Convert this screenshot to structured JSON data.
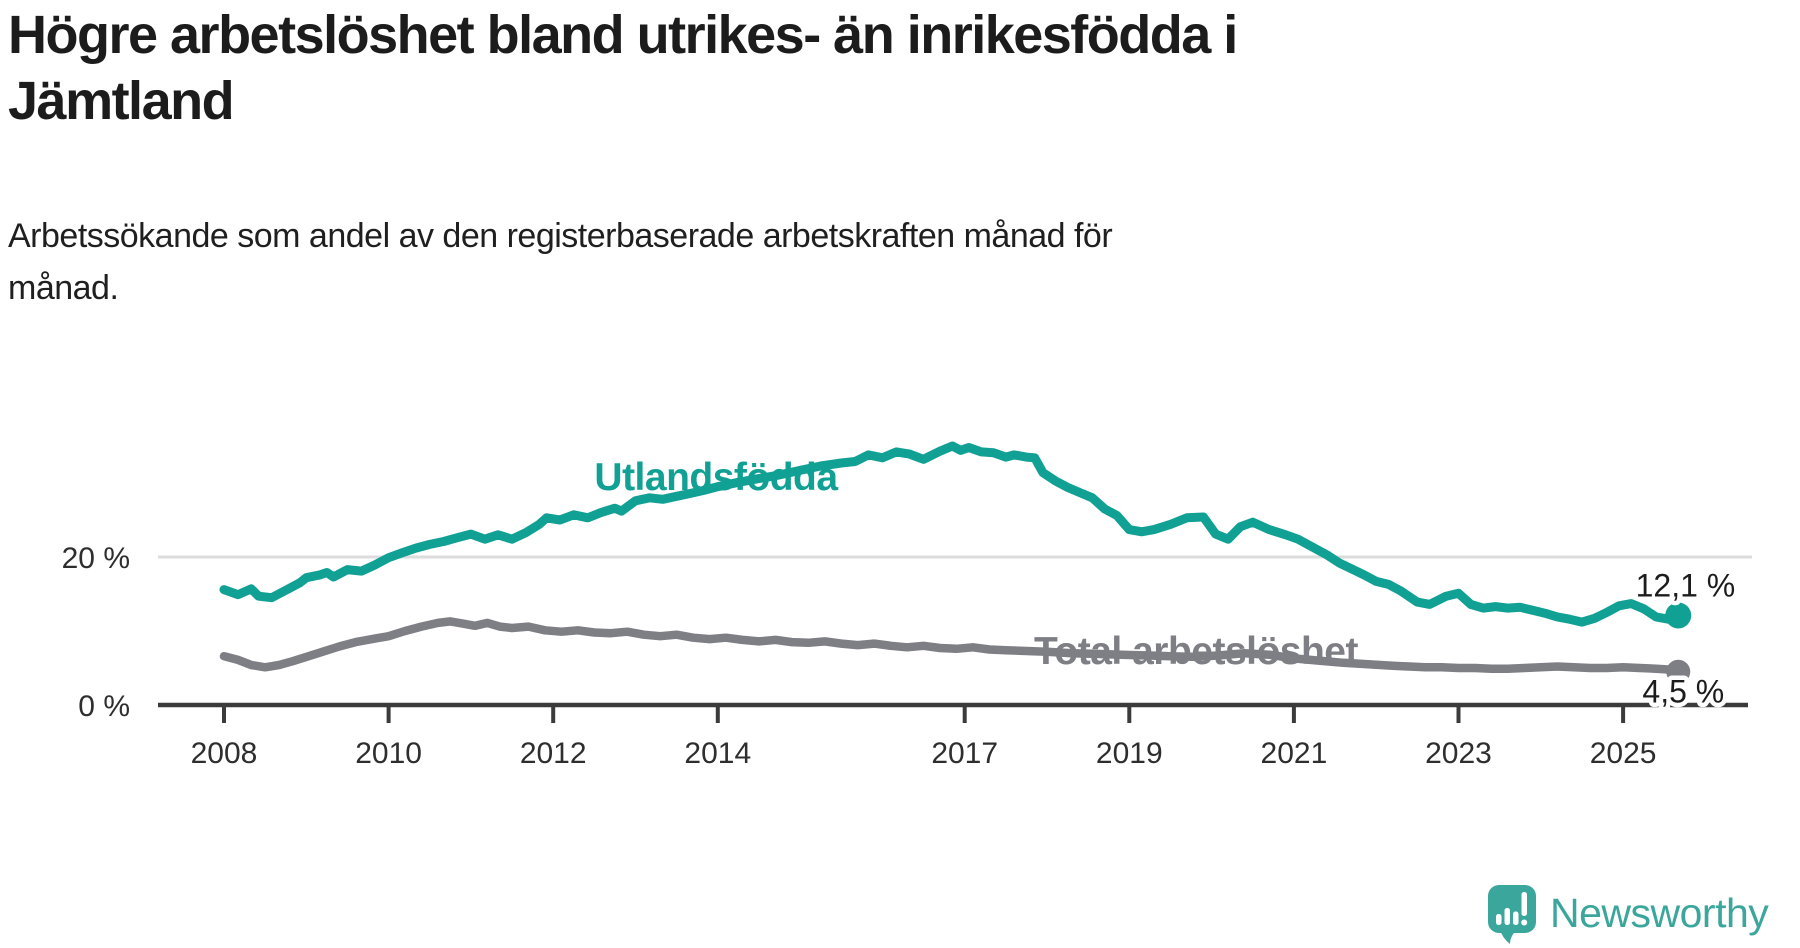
{
  "header": {
    "title_lines": [
      "Högre arbetslöshet bland utrikes- än inrikesfödda i",
      "Jämtland"
    ],
    "subtitle_lines": [
      "Arbetssökande som andel av den registerbaserade arbetskraften månad för",
      "månad."
    ]
  },
  "footer": {
    "brand_name": "Newsworthy"
  },
  "colors": {
    "teal": "#11a094",
    "gray": "#7e7e85",
    "axis": "#3b3b3b",
    "grid": "#dcdcdc",
    "tick_text": "#2e2e2e",
    "value_text": "#1c1c1c",
    "logo": "#3ba69c"
  },
  "chart_data": {
    "type": "line",
    "title": "Högre arbetslöshet bland utrikes- än inrikesfödda i Jämtland",
    "xlabel": "",
    "ylabel": "",
    "xlim": [
      2008,
      2025.67
    ],
    "ylim": [
      0,
      40
    ],
    "grid": "single horizontal gridline at 20 %",
    "legend": "inline series labels",
    "x_ticks": [
      {
        "year": 2008,
        "label": "2008"
      },
      {
        "year": 2010,
        "label": "2010"
      },
      {
        "year": 2012,
        "label": "2012"
      },
      {
        "year": 2014,
        "label": "2014"
      },
      {
        "year": 2017,
        "label": "2017"
      },
      {
        "year": 2019,
        "label": "2019"
      },
      {
        "year": 2021,
        "label": "2021"
      },
      {
        "year": 2023,
        "label": "2023"
      },
      {
        "year": 2025,
        "label": "2025"
      }
    ],
    "y_ticks": [
      {
        "value": 0,
        "label": "0 %"
      },
      {
        "value": 20,
        "label": "20 %"
      }
    ],
    "series": [
      {
        "name": "Utlandsfödda",
        "color": "#11a094",
        "end_label": "12,1 %",
        "end_value": 12.1,
        "points": [
          [
            2008.0,
            15.6
          ],
          [
            2008.17,
            14.9
          ],
          [
            2008.33,
            15.7
          ],
          [
            2008.42,
            14.7
          ],
          [
            2008.58,
            14.5
          ],
          [
            2008.75,
            15.5
          ],
          [
            2008.92,
            16.5
          ],
          [
            2009.0,
            17.2
          ],
          [
            2009.17,
            17.6
          ],
          [
            2009.25,
            17.9
          ],
          [
            2009.33,
            17.3
          ],
          [
            2009.5,
            18.3
          ],
          [
            2009.67,
            18.1
          ],
          [
            2009.83,
            18.9
          ],
          [
            2010.0,
            19.9
          ],
          [
            2010.17,
            20.6
          ],
          [
            2010.33,
            21.2
          ],
          [
            2010.5,
            21.7
          ],
          [
            2010.67,
            22.1
          ],
          [
            2010.83,
            22.6
          ],
          [
            2011.0,
            23.1
          ],
          [
            2011.17,
            22.4
          ],
          [
            2011.33,
            23.0
          ],
          [
            2011.5,
            22.4
          ],
          [
            2011.67,
            23.3
          ],
          [
            2011.83,
            24.4
          ],
          [
            2011.92,
            25.3
          ],
          [
            2012.08,
            25.0
          ],
          [
            2012.25,
            25.7
          ],
          [
            2012.42,
            25.3
          ],
          [
            2012.58,
            26.0
          ],
          [
            2012.75,
            26.6
          ],
          [
            2012.83,
            26.2
          ],
          [
            2013.0,
            27.6
          ],
          [
            2013.17,
            28.0
          ],
          [
            2013.33,
            27.8
          ],
          [
            2013.5,
            28.2
          ],
          [
            2013.67,
            28.6
          ],
          [
            2013.83,
            29.0
          ],
          [
            2014.0,
            29.5
          ],
          [
            2014.25,
            30.1
          ],
          [
            2014.5,
            30.6
          ],
          [
            2014.75,
            31.1
          ],
          [
            2015.0,
            31.7
          ],
          [
            2015.25,
            32.3
          ],
          [
            2015.5,
            32.7
          ],
          [
            2015.67,
            32.9
          ],
          [
            2015.83,
            33.8
          ],
          [
            2016.0,
            33.4
          ],
          [
            2016.17,
            34.2
          ],
          [
            2016.33,
            33.9
          ],
          [
            2016.5,
            33.2
          ],
          [
            2016.7,
            34.3
          ],
          [
            2016.85,
            35.0
          ],
          [
            2016.95,
            34.4
          ],
          [
            2017.05,
            34.8
          ],
          [
            2017.2,
            34.2
          ],
          [
            2017.35,
            34.1
          ],
          [
            2017.5,
            33.5
          ],
          [
            2017.6,
            33.8
          ],
          [
            2017.75,
            33.5
          ],
          [
            2017.85,
            33.4
          ],
          [
            2017.95,
            31.4
          ],
          [
            2018.1,
            30.3
          ],
          [
            2018.25,
            29.4
          ],
          [
            2018.4,
            28.7
          ],
          [
            2018.55,
            28.0
          ],
          [
            2018.7,
            26.5
          ],
          [
            2018.85,
            25.6
          ],
          [
            2019.0,
            23.7
          ],
          [
            2019.15,
            23.4
          ],
          [
            2019.3,
            23.7
          ],
          [
            2019.5,
            24.4
          ],
          [
            2019.7,
            25.3
          ],
          [
            2019.9,
            25.4
          ],
          [
            2020.05,
            23.1
          ],
          [
            2020.2,
            22.4
          ],
          [
            2020.35,
            24.1
          ],
          [
            2020.5,
            24.7
          ],
          [
            2020.7,
            23.7
          ],
          [
            2020.9,
            23.0
          ],
          [
            2021.05,
            22.4
          ],
          [
            2021.2,
            21.5
          ],
          [
            2021.4,
            20.3
          ],
          [
            2021.55,
            19.2
          ],
          [
            2021.7,
            18.4
          ],
          [
            2021.85,
            17.6
          ],
          [
            2022.0,
            16.7
          ],
          [
            2022.15,
            16.3
          ],
          [
            2022.3,
            15.4
          ],
          [
            2022.5,
            13.9
          ],
          [
            2022.65,
            13.6
          ],
          [
            2022.85,
            14.7
          ],
          [
            2023.0,
            15.1
          ],
          [
            2023.15,
            13.6
          ],
          [
            2023.3,
            13.1
          ],
          [
            2023.45,
            13.3
          ],
          [
            2023.6,
            13.1
          ],
          [
            2023.75,
            13.2
          ],
          [
            2023.9,
            12.8
          ],
          [
            2024.05,
            12.4
          ],
          [
            2024.2,
            11.9
          ],
          [
            2024.35,
            11.6
          ],
          [
            2024.5,
            11.2
          ],
          [
            2024.65,
            11.7
          ],
          [
            2024.8,
            12.5
          ],
          [
            2024.95,
            13.4
          ],
          [
            2025.1,
            13.7
          ],
          [
            2025.25,
            13.0
          ],
          [
            2025.4,
            11.9
          ],
          [
            2025.55,
            11.6
          ],
          [
            2025.67,
            12.1
          ]
        ]
      },
      {
        "name": "Total arbetslöshet",
        "color": "#7e7e85",
        "end_label": "4,5 %",
        "end_value": 4.5,
        "points": [
          [
            2008.0,
            6.6
          ],
          [
            2008.17,
            6.1
          ],
          [
            2008.33,
            5.4
          ],
          [
            2008.5,
            5.1
          ],
          [
            2008.67,
            5.4
          ],
          [
            2008.83,
            5.9
          ],
          [
            2009.0,
            6.5
          ],
          [
            2009.2,
            7.2
          ],
          [
            2009.4,
            7.9
          ],
          [
            2009.6,
            8.5
          ],
          [
            2009.8,
            8.9
          ],
          [
            2010.0,
            9.3
          ],
          [
            2010.2,
            10.0
          ],
          [
            2010.4,
            10.6
          ],
          [
            2010.6,
            11.1
          ],
          [
            2010.75,
            11.3
          ],
          [
            2010.9,
            11.0
          ],
          [
            2011.05,
            10.7
          ],
          [
            2011.2,
            11.1
          ],
          [
            2011.35,
            10.6
          ],
          [
            2011.5,
            10.4
          ],
          [
            2011.7,
            10.6
          ],
          [
            2011.9,
            10.1
          ],
          [
            2012.1,
            9.9
          ],
          [
            2012.3,
            10.1
          ],
          [
            2012.5,
            9.8
          ],
          [
            2012.7,
            9.7
          ],
          [
            2012.9,
            9.9
          ],
          [
            2013.1,
            9.5
          ],
          [
            2013.3,
            9.3
          ],
          [
            2013.5,
            9.5
          ],
          [
            2013.7,
            9.1
          ],
          [
            2013.9,
            8.9
          ],
          [
            2014.1,
            9.1
          ],
          [
            2014.3,
            8.8
          ],
          [
            2014.5,
            8.6
          ],
          [
            2014.7,
            8.8
          ],
          [
            2014.9,
            8.5
          ],
          [
            2015.1,
            8.4
          ],
          [
            2015.3,
            8.6
          ],
          [
            2015.5,
            8.3
          ],
          [
            2015.7,
            8.1
          ],
          [
            2015.9,
            8.3
          ],
          [
            2016.1,
            8.0
          ],
          [
            2016.3,
            7.8
          ],
          [
            2016.5,
            8.0
          ],
          [
            2016.7,
            7.7
          ],
          [
            2016.9,
            7.6
          ],
          [
            2017.1,
            7.8
          ],
          [
            2017.3,
            7.5
          ],
          [
            2017.5,
            7.4
          ],
          [
            2017.75,
            7.3
          ],
          [
            2018.0,
            7.2
          ],
          [
            2018.3,
            7.0
          ],
          [
            2018.6,
            6.9
          ],
          [
            2018.9,
            6.8
          ],
          [
            2019.2,
            6.7
          ],
          [
            2019.5,
            6.6
          ],
          [
            2019.8,
            6.5
          ],
          [
            2020.1,
            6.7
          ],
          [
            2020.4,
            7.0
          ],
          [
            2020.7,
            6.8
          ],
          [
            2021.0,
            6.3
          ],
          [
            2021.3,
            6.0
          ],
          [
            2021.6,
            5.7
          ],
          [
            2021.9,
            5.5
          ],
          [
            2022.2,
            5.3
          ],
          [
            2022.4,
            5.2
          ],
          [
            2022.6,
            5.1
          ],
          [
            2022.8,
            5.1
          ],
          [
            2023.0,
            5.0
          ],
          [
            2023.2,
            5.0
          ],
          [
            2023.4,
            4.9
          ],
          [
            2023.6,
            4.9
          ],
          [
            2023.8,
            5.0
          ],
          [
            2024.0,
            5.1
          ],
          [
            2024.2,
            5.2
          ],
          [
            2024.4,
            5.1
          ],
          [
            2024.6,
            5.0
          ],
          [
            2024.8,
            5.0
          ],
          [
            2025.0,
            5.1
          ],
          [
            2025.2,
            5.0
          ],
          [
            2025.4,
            4.9
          ],
          [
            2025.55,
            4.8
          ],
          [
            2025.67,
            4.5
          ]
        ]
      }
    ]
  }
}
